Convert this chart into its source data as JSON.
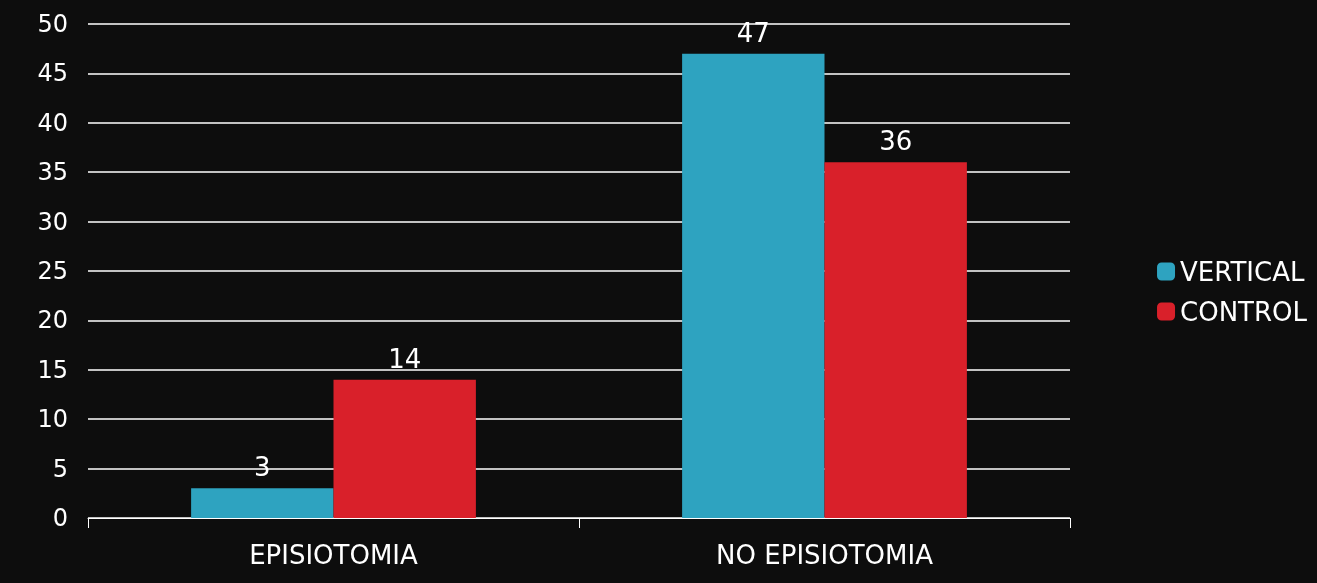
{
  "chart_data": {
    "type": "bar",
    "categories": [
      "EPISIOTOMIA",
      "NO EPISIOTOMIA"
    ],
    "series": [
      {
        "name": "VERTICAL",
        "color": "#2ea3c0",
        "values": [
          3,
          47
        ]
      },
      {
        "name": "CONTROL",
        "color": "#d9202a",
        "values": [
          14,
          36
        ]
      }
    ],
    "ylim": [
      0,
      50
    ],
    "yticks": [
      0,
      5,
      10,
      15,
      20,
      25,
      30,
      35,
      40,
      45,
      50
    ],
    "grid": "y",
    "legend": "right",
    "data_labels": true
  }
}
